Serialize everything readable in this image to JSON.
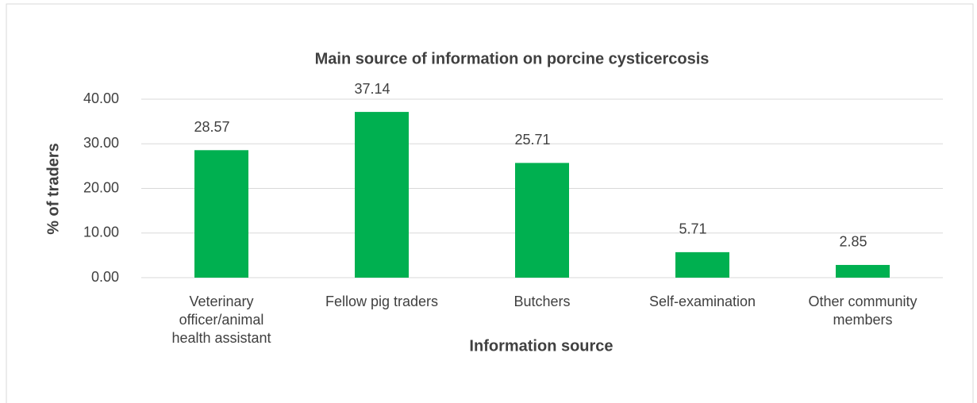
{
  "chart_data": {
    "type": "bar",
    "title": "Main source of information on porcine cysticercosis",
    "x_label": "Information source",
    "y_label": "% of traders",
    "categories": [
      "Veterinary officer/animal health assistant",
      "Fellow pig traders",
      "Butchers",
      "Self-examination",
      "Other community members"
    ],
    "values": [
      28.57,
      37.14,
      25.71,
      5.71,
      2.85
    ],
    "color": "#00b050",
    "ylim": [
      0,
      40
    ],
    "yticks": [
      {
        "value": 0,
        "label": "0.00"
      },
      {
        "value": 10,
        "label": "10.00"
      },
      {
        "value": 20,
        "label": "20.00"
      },
      {
        "value": 30,
        "label": "30.00"
      },
      {
        "value": 40,
        "label": "40.00"
      }
    ],
    "grid": true
  }
}
